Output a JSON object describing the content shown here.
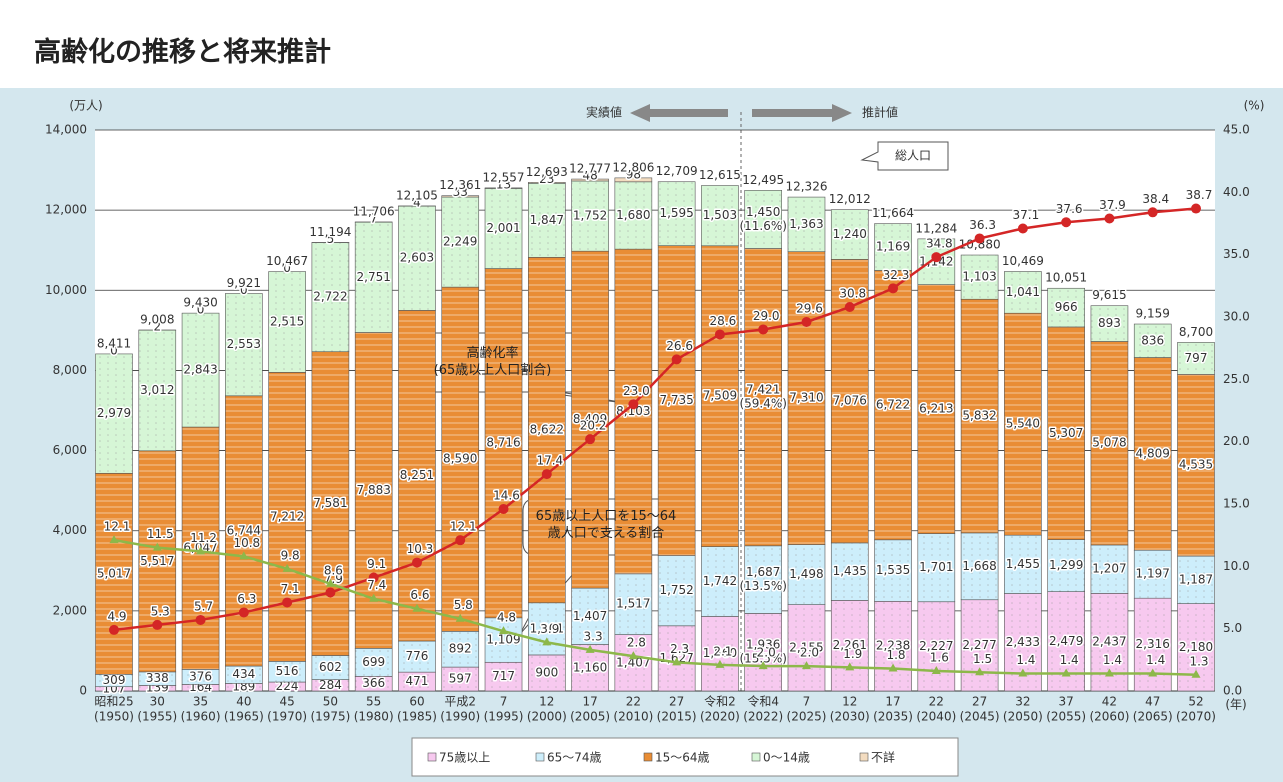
{
  "title": "高齢化の推移と将来推計",
  "chart_data": {
    "type": "bar",
    "y_unit": "(万人)",
    "y2_unit": "(%)",
    "x_unit": "(年)",
    "total_label": "総人口",
    "actual_label": "実績値",
    "projection_label": "推計値",
    "categories": [
      "昭和25",
      "30",
      "35",
      "40",
      "45",
      "50",
      "55",
      "60",
      "平成2",
      "7",
      "12",
      "17",
      "22",
      "27",
      "令和2",
      "令和4",
      "7",
      "12",
      "17",
      "22",
      "27",
      "32",
      "37",
      "42",
      "47",
      "52"
    ],
    "category_years": [
      "(1950)",
      "(1955)",
      "(1960)",
      "(1965)",
      "(1970)",
      "(1975)",
      "(1980)",
      "(1985)",
      "(1990)",
      "(1995)",
      "(2000)",
      "(2005)",
      "(2010)",
      "(2015)",
      "(2020)",
      "(2022)",
      "(2025)",
      "(2030)",
      "(2035)",
      "(2040)",
      "(2045)",
      "(2050)",
      "(2055)",
      "(2060)",
      "(2065)",
      "(2070)"
    ],
    "totals": [
      8411,
      9008,
      9430,
      9921,
      10467,
      11194,
      11706,
      12105,
      12361,
      12557,
      12693,
      12777,
      12806,
      12709,
      12615,
      12495,
      12326,
      12012,
      11664,
      11284,
      10880,
      10469,
      10051,
      9615,
      9159,
      8700
    ],
    "total_labels": [
      "8,411",
      "9,008",
      "9,430",
      "9,921",
      "10,467",
      "11,194",
      "11,706",
      "12,105",
      "12,361",
      "12,557",
      "12,693",
      "12,777",
      "12,806",
      "12,709",
      "12,615",
      "12,495",
      "12,326",
      "12,012",
      "11,664",
      "11,284",
      "10,880",
      "10,469",
      "10,051",
      "9,615",
      "9,159",
      "8,700"
    ],
    "series": [
      {
        "name": "75歳以上",
        "color": "#f7c9ef",
        "pattern": "dots",
        "values": [
          107,
          139,
          164,
          189,
          224,
          284,
          366,
          471,
          597,
          717,
          900,
          1160,
          1407,
          1627,
          1860,
          1936,
          2155,
          2261,
          2238,
          2227,
          2277,
          2433,
          2479,
          2437,
          2316,
          2180
        ],
        "value_labels": [
          "107",
          "139",
          "164",
          "189",
          "224",
          "284",
          "366",
          "471",
          "597",
          "717",
          "900",
          "1,160",
          "1,407",
          "1,627",
          "1,860",
          "1,936",
          "2,155",
          "2,261",
          "2,238",
          "2,227",
          "2,277",
          "2,433",
          "2,479",
          "2,437",
          "2,316",
          "2,180"
        ],
        "share_labels": [
          null,
          null,
          null,
          null,
          null,
          null,
          null,
          null,
          null,
          null,
          null,
          null,
          null,
          null,
          null,
          "(15.5%)",
          null,
          null,
          null,
          null,
          null,
          null,
          null,
          null,
          null,
          null
        ]
      },
      {
        "name": "65～74歳",
        "color": "#cdeefb",
        "pattern": "dots",
        "values": [
          309,
          338,
          376,
          434,
          516,
          602,
          699,
          776,
          892,
          1109,
          1301,
          1407,
          1517,
          1752,
          1742,
          1687,
          1498,
          1435,
          1535,
          1701,
          1668,
          1455,
          1299,
          1207,
          1197,
          1187
        ],
        "value_labels": [
          "309",
          "338",
          "376",
          "434",
          "516",
          "602",
          "699",
          "776",
          "892",
          "1,109",
          "1,301",
          "1,407",
          "1,517",
          "1,752",
          "1,742",
          "1,687",
          "1,498",
          "1,435",
          "1,535",
          "1,701",
          "1,668",
          "1,455",
          "1,299",
          "1,207",
          "1,197",
          "1,187"
        ],
        "share_labels": [
          null,
          null,
          null,
          null,
          null,
          null,
          null,
          null,
          null,
          null,
          null,
          null,
          null,
          null,
          null,
          "(13.5%)",
          null,
          null,
          null,
          null,
          null,
          null,
          null,
          null,
          null,
          null
        ]
      },
      {
        "name": "15～64歳",
        "color": "#e98d35",
        "pattern": "stripes",
        "values": [
          5017,
          5517,
          6047,
          6744,
          7212,
          7581,
          7883,
          8251,
          8590,
          8716,
          8622,
          8409,
          8103,
          7735,
          7509,
          7421,
          7310,
          7076,
          6722,
          6213,
          5832,
          5540,
          5307,
          5078,
          4809,
          4535
        ],
        "value_labels": [
          "5,017",
          "5,517",
          "6,047",
          "6,744",
          "7,212",
          "7,581",
          "7,883",
          "8,251",
          "8,590",
          "8,716",
          "8,622",
          "8,409",
          "8,103",
          "7,735",
          "7,509",
          "7,421",
          "7,310",
          "7,076",
          "6,722",
          "6,213",
          "5,832",
          "5,540",
          "5,307",
          "5,078",
          "4,809",
          "4,535"
        ],
        "share_labels": [
          null,
          null,
          null,
          null,
          null,
          null,
          null,
          null,
          null,
          null,
          null,
          null,
          null,
          null,
          null,
          "(59.4%)",
          null,
          null,
          null,
          null,
          null,
          null,
          null,
          null,
          null,
          null
        ]
      },
      {
        "name": "0～14歳",
        "color": "#d6f6d6",
        "pattern": "dots",
        "values": [
          2979,
          3012,
          2843,
          2553,
          2515,
          2722,
          2751,
          2603,
          2249,
          2001,
          1847,
          1752,
          1680,
          1595,
          1503,
          1450,
          1363,
          1240,
          1169,
          1142,
          1103,
          1041,
          966,
          893,
          836,
          797
        ],
        "value_labels": [
          "2,979",
          "3,012",
          "2,843",
          "2,553",
          "2,515",
          "2,722",
          "2,751",
          "2,603",
          "2,249",
          "2,001",
          "1,847",
          "1,752",
          "1,680",
          "1,595",
          "1,503",
          "1,450",
          "1,363",
          "1,240",
          "1,169",
          "1,142",
          "1,103",
          "1,041",
          "966",
          "893",
          "836",
          "797"
        ],
        "share_labels": [
          null,
          null,
          null,
          null,
          null,
          null,
          null,
          null,
          null,
          null,
          null,
          null,
          null,
          null,
          null,
          "(11.6%)",
          null,
          null,
          null,
          null,
          null,
          null,
          null,
          null,
          null,
          null
        ]
      },
      {
        "name": "不詳",
        "color": "#f3dcc0",
        "pattern": "dots",
        "values": [
          0,
          2,
          0,
          0,
          0,
          5,
          7,
          4,
          33,
          13,
          23,
          48,
          98,
          null,
          null,
          null,
          null,
          null,
          null,
          null,
          null,
          null,
          null,
          null,
          null,
          null
        ]
      }
    ],
    "lines": [
      {
        "name": "高齢化率",
        "subname": "(65歳以上人口割合)",
        "color": "#d42626",
        "axis": "y2",
        "marker": "circle",
        "values": [
          4.9,
          5.3,
          5.7,
          6.3,
          7.1,
          7.9,
          9.1,
          10.3,
          12.1,
          14.6,
          17.4,
          20.2,
          23.0,
          26.6,
          28.6,
          29.0,
          29.6,
          30.8,
          32.3,
          34.8,
          36.3,
          37.1,
          37.6,
          37.9,
          38.4,
          38.7
        ],
        "value_labels": [
          "4.9",
          "5.3",
          "5.7",
          "6.3",
          "7.1",
          "7.9",
          "9.1",
          "10.3",
          "12.1",
          "14.6",
          "17.4",
          "20.2",
          "23.0",
          "26.6",
          "28.6",
          "29.0",
          "29.6",
          "30.8",
          "32.3",
          "34.8",
          "36.3",
          "37.1",
          "37.6",
          "37.9",
          "38.4",
          "38.7"
        ]
      },
      {
        "name": "65歳以上人口を15～64歳人口で支える割合",
        "color": "#8db84a",
        "axis": "y2",
        "marker": "triangle",
        "values": [
          12.1,
          11.5,
          11.2,
          10.8,
          9.8,
          8.6,
          7.4,
          6.6,
          5.8,
          4.8,
          3.9,
          3.3,
          2.8,
          2.3,
          2.1,
          2.0,
          2.0,
          1.9,
          1.8,
          1.6,
          1.5,
          1.4,
          1.4,
          1.4,
          1.4,
          1.3
        ],
        "value_labels": [
          "12.1",
          "11.5",
          "11.2",
          "10.8",
          "9.8",
          "8.6",
          "7.4",
          "6.6",
          "5.8",
          "4.8",
          "3.9",
          "3.3",
          "2.8",
          "2.3",
          "2.1",
          "2.0",
          "2.0",
          "1.9",
          "1.8",
          "1.6",
          "1.5",
          "1.4",
          "1.4",
          "1.4",
          "1.4",
          "1.3"
        ]
      }
    ],
    "ylim": [
      0,
      14000
    ],
    "yticks": [
      0,
      {
        "value": 2000,
        "label": "2,000"
      },
      {
        "value": 4000,
        "label": "4,000"
      },
      {
        "value": 6000,
        "label": "6,000"
      },
      {
        "value": 8000,
        "label": "8,000"
      },
      {
        "value": 10000,
        "label": "10,000"
      },
      {
        "value": 12000,
        "label": "12,000"
      },
      {
        "value": 14000,
        "label": "14,000"
      }
    ],
    "y2lim": [
      0,
      45
    ],
    "y2ticks": [
      {
        "value": 0,
        "label": "0.0"
      },
      {
        "value": 5,
        "label": "5.0"
      },
      {
        "value": 10,
        "label": "10.0"
      },
      {
        "value": 15,
        "label": "15.0"
      },
      {
        "value": 20,
        "label": "20.0"
      },
      {
        "value": 25,
        "label": "25.0"
      },
      {
        "value": 30,
        "label": "30.0"
      },
      {
        "value": 35,
        "label": "35.0"
      },
      {
        "value": 40,
        "label": "40.0"
      },
      {
        "value": 45,
        "label": "45.0"
      }
    ],
    "grid": true
  }
}
